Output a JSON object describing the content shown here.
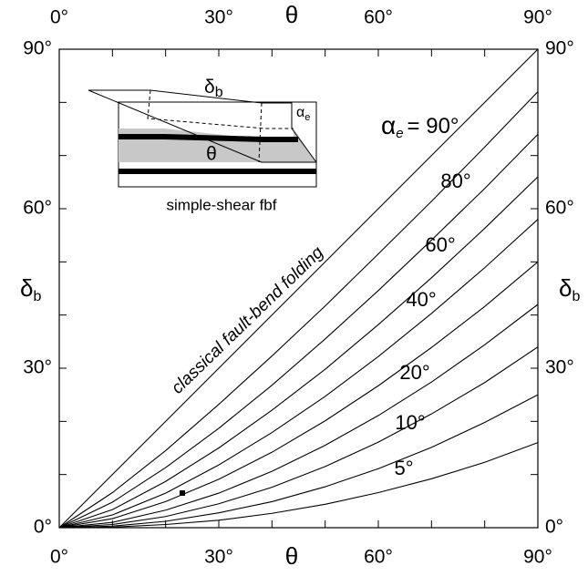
{
  "chart_data": {
    "type": "line",
    "xlabel": "θ",
    "ylabel": {
      "text": "δ",
      "sub": "b"
    },
    "x": [
      0,
      10,
      20,
      30,
      40,
      50,
      60,
      70,
      80,
      90
    ],
    "xlim": [
      0,
      90
    ],
    "ylim": [
      0,
      90
    ],
    "xticks": [
      {
        "value": 0,
        "label": "0°"
      },
      {
        "value": 30,
        "label": "30°"
      },
      {
        "value": 60,
        "label": "60°"
      },
      {
        "value": 90,
        "label": "90°"
      }
    ],
    "yticks": [
      {
        "value": 0,
        "label": "0°"
      },
      {
        "value": 30,
        "label": "30°"
      },
      {
        "value": 60,
        "label": "60°"
      },
      {
        "value": 90,
        "label": "90°"
      }
    ],
    "xminor": [
      10,
      20,
      40,
      50,
      70,
      80
    ],
    "yminor": [
      10,
      20,
      40,
      50,
      70,
      80
    ],
    "color": "#000000",
    "series_prefix": {
      "text": "α",
      "sub": "e"
    },
    "series": [
      {
        "label": "= 90°",
        "values": [
          0,
          10,
          20,
          30,
          40,
          50,
          60,
          70,
          80,
          90
        ]
      },
      {
        "label": "80°",
        "values": [
          0,
          6.6,
          14.5,
          23.2,
          32.3,
          41.7,
          51.5,
          61.4,
          71.6,
          82
        ]
      },
      {
        "values": [
          0,
          4.8,
          11.3,
          18.7,
          26.8,
          35.5,
          44.6,
          54.1,
          63.8,
          74
        ]
      },
      {
        "label": "60°",
        "values": [
          0,
          3.4,
          8.7,
          15.0,
          22.1,
          29.8,
          38.2,
          47.0,
          56.3,
          66
        ]
      },
      {
        "values": [
          0,
          2.4,
          6.5,
          11.8,
          17.9,
          24.7,
          32.2,
          40.3,
          48.9,
          58
        ]
      },
      {
        "label": "40°",
        "values": [
          0,
          1.7,
          4.9,
          9.1,
          14.2,
          20.1,
          26.7,
          33.9,
          41.6,
          50
        ]
      },
      {
        "values": [
          0,
          1.0,
          3.3,
          6.5,
          10.6,
          15.5,
          21.1,
          27.4,
          34.4,
          42
        ]
      },
      {
        "label": "20°",
        "values": [
          0,
          0.6,
          2.1,
          4.5,
          7.6,
          11.5,
          16.1,
          21.4,
          27.3,
          34
        ]
      },
      {
        "label": "10°",
        "values": [
          0,
          0.3,
          1.2,
          2.8,
          4.9,
          7.7,
          11.1,
          15.1,
          19.8,
          25
        ]
      },
      {
        "label": "5°",
        "values": [
          0,
          0.1,
          0.6,
          1.4,
          2.7,
          4.4,
          6.6,
          9.2,
          12.3,
          16
        ]
      }
    ],
    "annotation": "classical fault-bend folding",
    "inset": {
      "caption": "simple-shear fbf",
      "delta": {
        "text": "δ",
        "sub": "b"
      },
      "alpha": {
        "text": "α",
        "sub": "e"
      },
      "theta": "θ"
    }
  }
}
